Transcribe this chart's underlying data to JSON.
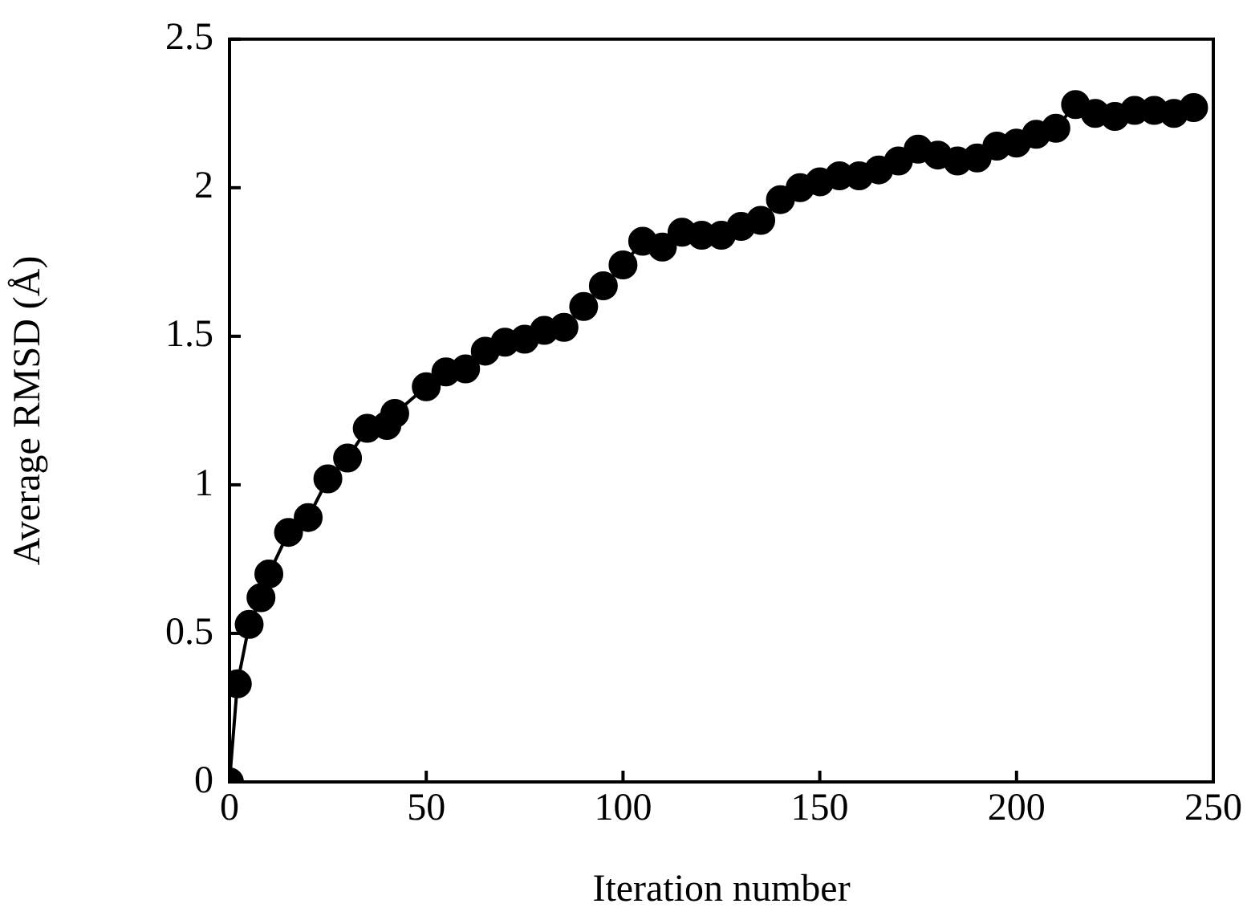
{
  "chart_data": {
    "type": "line",
    "xlabel": "Iteration number",
    "ylabel": "Average RMSD (Å)",
    "xlim": [
      0,
      250
    ],
    "xticks": [
      0,
      50,
      100,
      150,
      200,
      250
    ],
    "ylim": [
      0,
      2.5
    ],
    "yticks": [
      0,
      0.5,
      1,
      1.5,
      2,
      2.5
    ],
    "grid": false,
    "legend": false,
    "marker": "circle",
    "line_style": "solid",
    "x": [
      0,
      2,
      5,
      8,
      10,
      15,
      20,
      25,
      30,
      35,
      40,
      42,
      50,
      55,
      60,
      65,
      70,
      75,
      80,
      85,
      90,
      95,
      100,
      105,
      110,
      115,
      120,
      125,
      130,
      135,
      140,
      145,
      150,
      155,
      160,
      165,
      170,
      175,
      180,
      185,
      190,
      195,
      200,
      205,
      210,
      215,
      220,
      225,
      230,
      235,
      240,
      245
    ],
    "series": [
      {
        "color": "#000000",
        "values": [
          0,
          0.33,
          0.53,
          0.62,
          0.7,
          0.84,
          0.89,
          1.02,
          1.09,
          1.19,
          1.2,
          1.24,
          1.33,
          1.38,
          1.39,
          1.45,
          1.48,
          1.49,
          1.52,
          1.53,
          1.6,
          1.67,
          1.74,
          1.82,
          1.8,
          1.85,
          1.84,
          1.84,
          1.87,
          1.89,
          1.96,
          2.0,
          2.02,
          2.04,
          2.04,
          2.06,
          2.09,
          2.13,
          2.11,
          2.09,
          2.1,
          2.14,
          2.15,
          2.18,
          2.2,
          2.28,
          2.25,
          2.24,
          2.26,
          2.26,
          2.25,
          2.27
        ]
      }
    ]
  }
}
